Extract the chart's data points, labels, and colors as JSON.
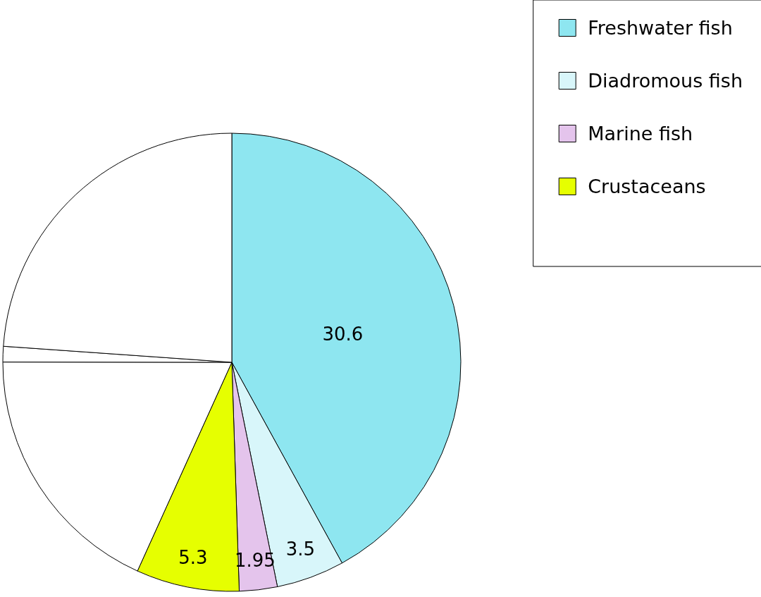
{
  "chart_data": {
    "type": "pie",
    "categories": [
      "Freshwater fish",
      "Diadromous fish",
      "Marine fish",
      "Crustaceans",
      null,
      null,
      null
    ],
    "values": [
      30.6,
      3.5,
      1.95,
      5.3,
      13.3,
      0.8,
      17.4
    ],
    "colors": [
      "#8ee6f0",
      "#d8f6fa",
      "#e4c4ec",
      "#e6ff00",
      "#ffffff",
      "#ffffff",
      "#ffffff"
    ],
    "value_labels": [
      "30.6",
      "3.5",
      "1.95",
      "5.3",
      null,
      null,
      null
    ],
    "legend": "top right"
  }
}
